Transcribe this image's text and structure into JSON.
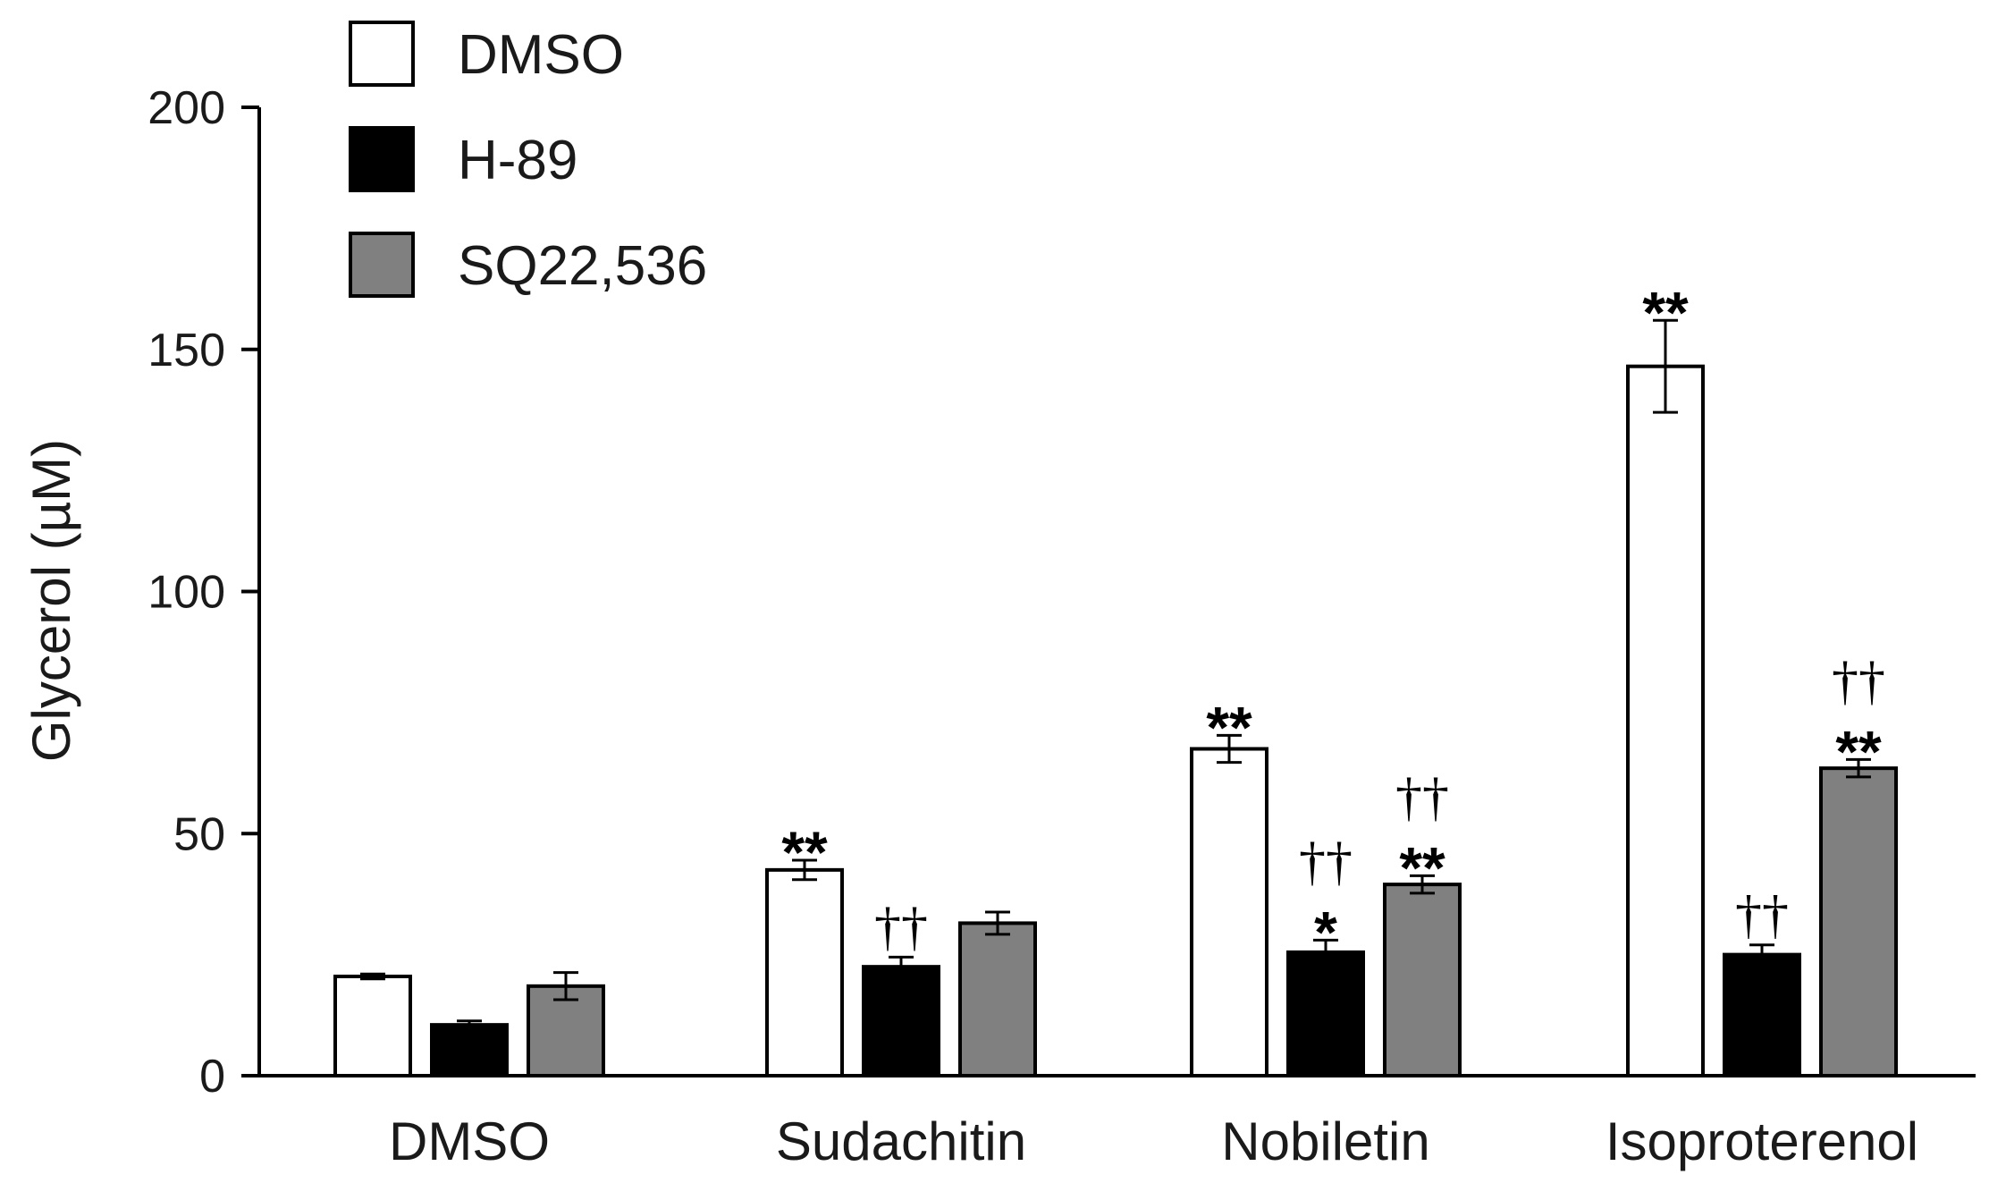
{
  "chart_data": {
    "type": "bar",
    "title": "",
    "xlabel": "",
    "ylabel": "Glycerol (µM)",
    "ylim": [
      0,
      200
    ],
    "yticks": [
      0,
      50,
      100,
      150,
      200
    ],
    "categories": [
      "DMSO",
      "Sudachitin",
      "Nobiletin",
      "Isoproterenol"
    ],
    "legend_position": "top-left",
    "series": [
      {
        "name": "DMSO",
        "color": "#ffffff",
        "values": [
          20.5,
          42.5,
          67.5,
          146.5
        ],
        "errors": [
          0.5,
          2.0,
          2.8,
          9.5
        ],
        "marks_top": [
          "",
          "",
          "",
          ""
        ],
        "marks_bottom": [
          "",
          "**",
          "**",
          "**"
        ]
      },
      {
        "name": "H-89",
        "color": "#000000",
        "values": [
          10.5,
          22.5,
          25.5,
          25.0
        ],
        "errors": [
          0.8,
          2.0,
          2.5,
          2.0
        ],
        "marks_top": [
          "",
          "",
          "††",
          ""
        ],
        "marks_bottom": [
          "",
          "††",
          "*",
          "††"
        ]
      },
      {
        "name": "SQ22,536",
        "color": "#808080",
        "values": [
          18.5,
          31.5,
          39.5,
          63.5
        ],
        "errors": [
          2.8,
          2.3,
          1.8,
          1.8
        ],
        "marks_top": [
          "",
          "",
          "††",
          "††"
        ],
        "marks_bottom": [
          "",
          "",
          "**",
          "**"
        ]
      }
    ]
  }
}
